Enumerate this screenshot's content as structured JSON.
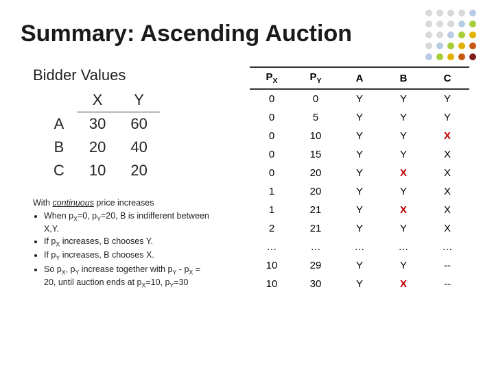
{
  "title": "Summary: Ascending Auction",
  "deco_colors": [
    "#d9d9d9",
    "#d9d9d9",
    "#d9d9d9",
    "#d9d9d9",
    "#b8cce4",
    "#d9d9d9",
    "#d9d9d9",
    "#d9d9d9",
    "#b8cce4",
    "#a6ce39",
    "#d9d9d9",
    "#d9d9d9",
    "#b8cce4",
    "#a6ce39",
    "#e3b200",
    "#d9d9d9",
    "#b8cce4",
    "#a6ce39",
    "#e3b200",
    "#c55a11",
    "#b8cce4",
    "#a6ce39",
    "#e3b200",
    "#c55a11",
    "#7f1f1f"
  ],
  "bidder_values": {
    "title": "Bidder Values",
    "col_x": "X",
    "col_y": "Y",
    "rows": [
      {
        "name": "A",
        "x": "30",
        "y": "60"
      },
      {
        "name": "B",
        "x": "20",
        "y": "40"
      },
      {
        "name": "C",
        "x": "10",
        "y": "20"
      }
    ]
  },
  "notes": {
    "lead_pre": "With ",
    "lead_em": "continuous",
    "lead_post": " price increases",
    "items": [
      "When p_X=0, p_Y=20, B is indifferent between X,Y.",
      "If p_X increases, B chooses Y.",
      "If p_Y increases, B chooses X.",
      "So p_X, p_Y increase together with p_Y - p_X = 20, until auction ends at p_X=10, p_Y=30"
    ]
  },
  "price_table": {
    "headers": [
      "P_X",
      "P_Y",
      "A",
      "B",
      "C"
    ],
    "rows": [
      {
        "px": "0",
        "py": "0",
        "a": "Y",
        "b": "Y",
        "c": "Y",
        "cx": false,
        "bx": false
      },
      {
        "px": "0",
        "py": "5",
        "a": "Y",
        "b": "Y",
        "c": "Y",
        "cx": false,
        "bx": false
      },
      {
        "px": "0",
        "py": "10",
        "a": "Y",
        "b": "Y",
        "c": "X",
        "cx": true,
        "bx": false
      },
      {
        "px": "0",
        "py": "15",
        "a": "Y",
        "b": "Y",
        "c": "X",
        "cx": false,
        "bx": false
      },
      {
        "px": "0",
        "py": "20",
        "a": "Y",
        "b": "X",
        "c": "X",
        "cx": false,
        "bx": true
      },
      {
        "px": "1",
        "py": "20",
        "a": "Y",
        "b": "Y",
        "c": "X",
        "cx": false,
        "bx": false
      },
      {
        "px": "1",
        "py": "21",
        "a": "Y",
        "b": "X",
        "c": "X",
        "cx": false,
        "bx": true
      },
      {
        "px": "2",
        "py": "21",
        "a": "Y",
        "b": "Y",
        "c": "X",
        "cx": false,
        "bx": false
      },
      {
        "px": "…",
        "py": "…",
        "a": "…",
        "b": "…",
        "c": "…",
        "cx": false,
        "bx": false
      },
      {
        "px": "10",
        "py": "29",
        "a": "Y",
        "b": "Y",
        "c": "--",
        "cx": false,
        "bx": false,
        "cdash": true
      },
      {
        "px": "10",
        "py": "30",
        "a": "Y",
        "b": "X",
        "c": "--",
        "cx": false,
        "bx": true,
        "cdash": true
      }
    ]
  }
}
